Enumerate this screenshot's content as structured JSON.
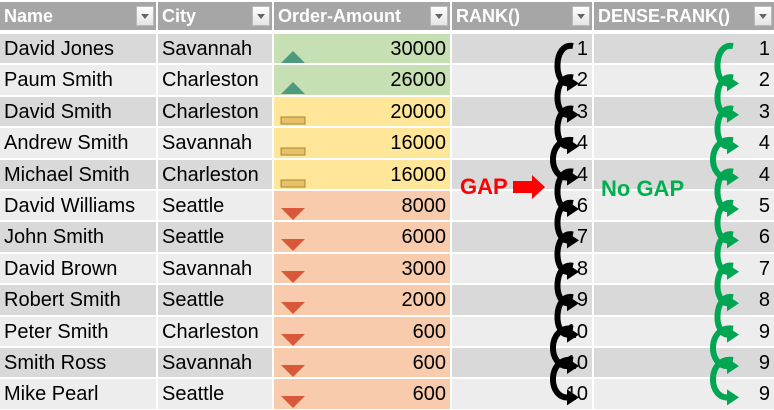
{
  "columns": [
    "Name",
    "City",
    "Order-Amount",
    "RANK()",
    "DENSE-RANK()"
  ],
  "rows": [
    {
      "name": "David Jones",
      "city": "Savannah",
      "amount": "30000",
      "rank": "1",
      "dense": "1",
      "icon": "up-triangle-icon",
      "band": "green"
    },
    {
      "name": "Paum Smith",
      "city": "Charleston",
      "amount": "26000",
      "rank": "2",
      "dense": "2",
      "icon": "up-triangle-icon",
      "band": "green"
    },
    {
      "name": "David Smith",
      "city": "Charleston",
      "amount": "20000",
      "rank": "3",
      "dense": "3",
      "icon": "dash-icon",
      "band": "yellow"
    },
    {
      "name": "Andrew Smith",
      "city": "Savannah",
      "amount": "16000",
      "rank": "4",
      "dense": "4",
      "icon": "dash-icon",
      "band": "yellow"
    },
    {
      "name": "Michael Smith",
      "city": "Charleston",
      "amount": "16000",
      "rank": "4",
      "dense": "4",
      "icon": "dash-icon",
      "band": "yellow"
    },
    {
      "name": "David Williams",
      "city": "Seattle",
      "amount": "8000",
      "rank": "6",
      "dense": "5",
      "icon": "down-triangle-icon",
      "band": "orange"
    },
    {
      "name": "John Smith",
      "city": "Seattle",
      "amount": "6000",
      "rank": "7",
      "dense": "6",
      "icon": "down-triangle-icon",
      "band": "orange"
    },
    {
      "name": "David Brown",
      "city": "Savannah",
      "amount": "3000",
      "rank": "8",
      "dense": "7",
      "icon": "down-triangle-icon",
      "band": "orange"
    },
    {
      "name": "Robert Smith",
      "city": "Seattle",
      "amount": "2000",
      "rank": "9",
      "dense": "8",
      "icon": "down-triangle-icon",
      "band": "orange"
    },
    {
      "name": "Peter Smith",
      "city": "Charleston",
      "amount": "600",
      "rank": "10",
      "dense": "9",
      "icon": "down-triangle-icon",
      "band": "orange"
    },
    {
      "name": "Smith Ross",
      "city": "Savannah",
      "amount": "600",
      "rank": "10",
      "dense": "9",
      "icon": "down-triangle-icon",
      "band": "orange"
    },
    {
      "name": "Mike Pearl",
      "city": "Seattle",
      "amount": "600",
      "rank": "10",
      "dense": "9",
      "icon": "down-triangle-icon",
      "band": "orange"
    }
  ],
  "annotations": {
    "gap": "GAP",
    "no_gap": "No GAP"
  },
  "colors": {
    "header": "#a6a6a6",
    "row_dark": "#d9d9d9",
    "row_light": "#ededed",
    "green": "#c6e0b4",
    "yellow": "#ffe699",
    "orange": "#f8cbad",
    "up": "#4e9a7c",
    "dash": "#e8c06a",
    "down": "#d9583a",
    "rank_arrow": "#000000",
    "dense_arrow": "#00a651",
    "gap": "#ff0000",
    "no_gap": "#00b050"
  }
}
